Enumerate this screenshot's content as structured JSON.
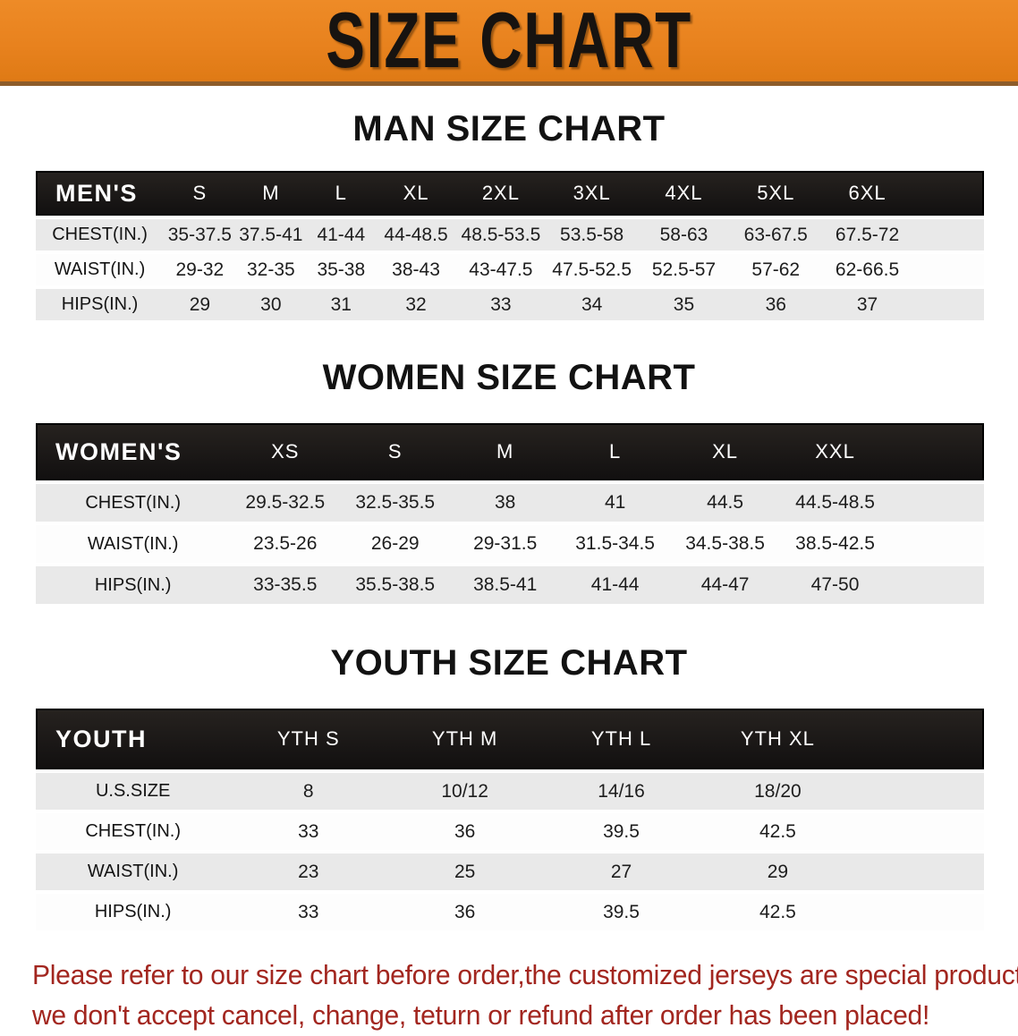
{
  "banner": {
    "title": "SIZE CHART",
    "bg_color": "#e8821e",
    "text_color": "#171310"
  },
  "sections": [
    {
      "title": "MAN SIZE CHART",
      "table": {
        "header_label": "MEN'S",
        "columns": [
          "S",
          "M",
          "L",
          "XL",
          "2XL",
          "3XL",
          "4XL",
          "5XL",
          "6XL"
        ],
        "rows": [
          {
            "label": "CHEST(IN.)",
            "values": [
              "35-37.5",
              "37.5-41",
              "41-44",
              "44-48.5",
              "48.5-53.5",
              "53.5-58",
              "58-63",
              "63-67.5",
              "67.5-72"
            ]
          },
          {
            "label": "WAIST(IN.)",
            "values": [
              "29-32",
              "32-35",
              "35-38",
              "38-43",
              "43-47.5",
              "47.5-52.5",
              "52.5-57",
              "57-62",
              "62-66.5"
            ]
          },
          {
            "label": "HIPS(IN.)",
            "values": [
              "29",
              "30",
              "31",
              "32",
              "33",
              "34",
              "35",
              "36",
              "37"
            ]
          }
        ]
      }
    },
    {
      "title": "WOMEN SIZE CHART",
      "table": {
        "header_label": "WOMEN'S",
        "columns": [
          "XS",
          "S",
          "M",
          "L",
          "XL",
          "XXL"
        ],
        "rows": [
          {
            "label": "CHEST(IN.)",
            "values": [
              "29.5-32.5",
              "32.5-35.5",
              "38",
              "41",
              "44.5",
              "44.5-48.5"
            ]
          },
          {
            "label": "WAIST(IN.)",
            "values": [
              "23.5-26",
              "26-29",
              "29-31.5",
              "31.5-34.5",
              "34.5-38.5",
              "38.5-42.5"
            ]
          },
          {
            "label": "HIPS(IN.)",
            "values": [
              "33-35.5",
              "35.5-38.5",
              "38.5-41",
              "41-44",
              "44-47",
              "47-50"
            ]
          }
        ]
      }
    },
    {
      "title": "YOUTH SIZE CHART",
      "table": {
        "header_label": "YOUTH",
        "columns": [
          "YTH S",
          "YTH M",
          "YTH L",
          "YTH XL"
        ],
        "rows": [
          {
            "label": "U.S.SIZE",
            "values": [
              "8",
              "10/12",
              "14/16",
              "18/20"
            ]
          },
          {
            "label": "CHEST(IN.)",
            "values": [
              "33",
              "36",
              "39.5",
              "42.5"
            ]
          },
          {
            "label": "WAIST(IN.)",
            "values": [
              "23",
              "25",
              "27",
              "29"
            ]
          },
          {
            "label": "HIPS(IN.)",
            "values": [
              "33",
              "36",
              "39.5",
              "42.5"
            ]
          }
        ]
      }
    }
  ],
  "disclaimer": {
    "line1": "Please refer to our size chart before order,the customized jerseys are special products,",
    "line2": "we don't accept cancel, change, teturn or refund after order has been placed!",
    "color": "#a2261f"
  }
}
